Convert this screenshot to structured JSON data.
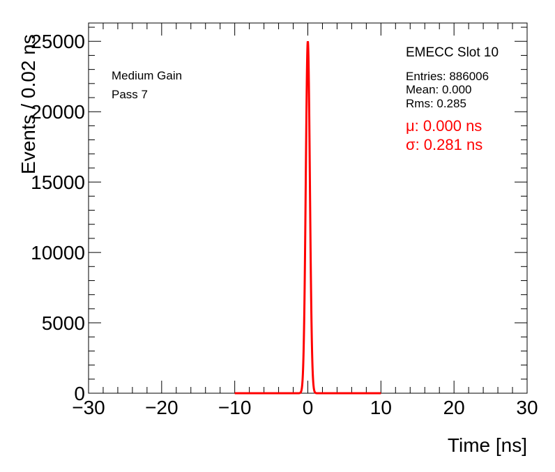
{
  "chart_data": {
    "type": "line",
    "title": "",
    "xlabel": "Time [ns]",
    "ylabel": "Events / 0.02 ns",
    "xlim": [
      -30,
      30
    ],
    "ylim": [
      0,
      26300
    ],
    "x_ticks": [
      -30,
      -20,
      -10,
      0,
      10,
      20,
      30
    ],
    "x_tick_labels": [
      "−30",
      "−20",
      "−10",
      "0",
      "10",
      "20",
      "30"
    ],
    "y_ticks": [
      0,
      5000,
      10000,
      15000,
      20000,
      25000
    ],
    "y_tick_labels": [
      "0",
      "5000",
      "10000",
      "15000",
      "20000",
      "25000"
    ],
    "grid": false,
    "series": [
      {
        "kind": "histogram",
        "color": "#000000",
        "bin_width": 0.02,
        "mean": 0.0,
        "rms": 0.285,
        "peak": 25000
      },
      {
        "kind": "gaussian-fit",
        "color": "#ff0000",
        "mu": 0.0,
        "sigma": 0.281,
        "amplitude": 25000,
        "range": [
          -10,
          10
        ]
      }
    ],
    "annotations": {
      "gain": "Medium Gain",
      "pass": "Pass 7",
      "slot": "EMECC Slot 10",
      "entries": "Entries: 886006",
      "mean": "Mean: 0.000",
      "rms": "Rms: 0.285",
      "fit_mu": "μ: 0.000 ns",
      "fit_sigma": "σ: 0.281 ns"
    },
    "colors": {
      "fit": "#ff0000",
      "histogram": "#000000"
    }
  }
}
